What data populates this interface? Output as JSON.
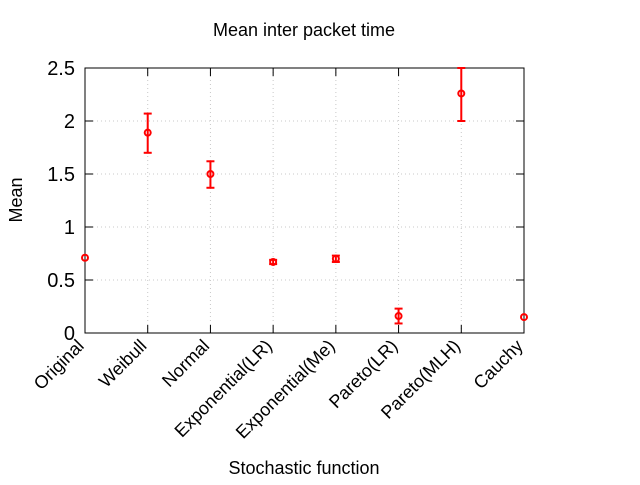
{
  "chart_data": {
    "type": "scatter",
    "title": "Mean inter packet time",
    "xlabel": "Stochastic function",
    "ylabel": "Mean",
    "categories": [
      "Original",
      "Weibull",
      "Normal",
      "Exponential(LR)",
      "Exponential(Me)",
      "Pareto(LR)",
      "Pareto(MLH)",
      "Cauchy"
    ],
    "ylim": [
      0,
      2.5
    ],
    "yticks": [
      0,
      0.5,
      1,
      1.5,
      2,
      2.5
    ],
    "ytick_labels": [
      "0",
      "0.5",
      "1",
      "1.5",
      "2",
      "2.5"
    ],
    "grid": true,
    "series": [
      {
        "color": "#ff0000",
        "values": [
          0.71,
          1.89,
          1.5,
          0.67,
          0.7,
          0.16,
          2.26,
          0.15
        ],
        "error_low": [
          0.71,
          1.7,
          1.37,
          0.65,
          0.67,
          0.09,
          2.0,
          0.15
        ],
        "error_high": [
          0.71,
          2.07,
          1.62,
          0.69,
          0.73,
          0.23,
          2.5,
          0.15
        ]
      }
    ]
  }
}
